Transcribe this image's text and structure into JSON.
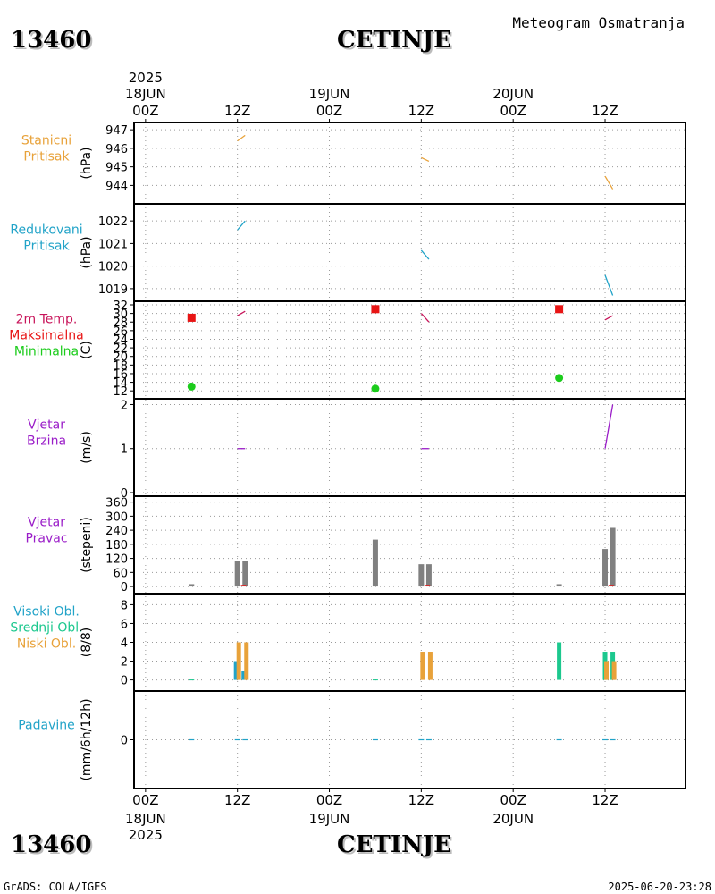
{
  "header": {
    "station_id": "13460",
    "station_name": "CETINJE",
    "subtitle": "Meteogram Osmatranja"
  },
  "time_axis": {
    "year": "2025",
    "top_ticks": [
      {
        "hour": "00Z",
        "date": "18JUN",
        "year": "2025"
      },
      {
        "hour": "12Z",
        "date": "",
        "year": ""
      },
      {
        "hour": "00Z",
        "date": "19JUN",
        "year": ""
      },
      {
        "hour": "12Z",
        "date": "",
        "year": ""
      },
      {
        "hour": "00Z",
        "date": "20JUN",
        "year": ""
      },
      {
        "hour": "12Z",
        "date": "",
        "year": ""
      }
    ],
    "tick_hours": [
      0,
      12,
      24,
      36,
      48,
      60
    ],
    "range_hours": [
      -1.5,
      70.5
    ]
  },
  "footer": {
    "left": "GrADS: COLA/IGES",
    "right": "2025-06-20-23:28"
  },
  "colors": {
    "station_pressure": "#e8a23a",
    "reduced_pressure": "#21a3c8",
    "temperature": "#c8145a",
    "max_temp": "#e81414",
    "min_temp": "#1ccc1c",
    "wind": "#9a1cc8",
    "wind_dir_bar": "#808080",
    "wind_dir_marker": "#e81414",
    "high_cloud": "#21a3c8",
    "mid_cloud": "#1cc88e",
    "low_cloud": "#e8a23a",
    "precip": "#21a3c8"
  },
  "chart_data": [
    {
      "id": "station_pressure",
      "type": "line",
      "labels": [
        {
          "text": "Stanicni",
          "color": "#e8a23a"
        },
        {
          "text": "Pritisak",
          "color": "#e8a23a"
        }
      ],
      "ylabel": "(hPa)",
      "ylim": [
        943.2,
        947.2
      ],
      "yticks": [
        944,
        945,
        946,
        947
      ],
      "series": [
        {
          "name": "station_pressure",
          "color": "#e8a23a",
          "x": [
            12,
            13
          ],
          "y": [
            946.4,
            946.7
          ]
        },
        {
          "name": "station_pressure",
          "color": "#e8a23a",
          "x": [
            36,
            37
          ],
          "y": [
            945.5,
            945.3
          ]
        },
        {
          "name": "station_pressure",
          "color": "#e8a23a",
          "x": [
            60,
            61
          ],
          "y": [
            944.5,
            943.8
          ]
        }
      ]
    },
    {
      "id": "reduced_pressure",
      "type": "line",
      "labels": [
        {
          "text": "Redukovani",
          "color": "#21a3c8"
        },
        {
          "text": "Pritisak",
          "color": "#21a3c8"
        }
      ],
      "ylabel": "(hPa)",
      "ylim": [
        1018.6,
        1022.6
      ],
      "yticks": [
        1019,
        1020,
        1021,
        1022
      ],
      "series": [
        {
          "name": "reduced_pressure",
          "color": "#21a3c8",
          "x": [
            12,
            13
          ],
          "y": [
            1021.6,
            1022.0
          ]
        },
        {
          "name": "reduced_pressure",
          "color": "#21a3c8",
          "x": [
            36,
            37
          ],
          "y": [
            1020.7,
            1020.3
          ]
        },
        {
          "name": "reduced_pressure",
          "color": "#21a3c8",
          "x": [
            60,
            61
          ],
          "y": [
            1019.6,
            1018.7
          ]
        }
      ]
    },
    {
      "id": "temperature",
      "type": "line",
      "labels": [
        {
          "text": "2m Temp.",
          "color": "#c8145a"
        },
        {
          "text": "Maksimalna",
          "color": "#e81414"
        },
        {
          "text": "Minimalna",
          "color": "#1ccc1c"
        }
      ],
      "ylabel": "(C)",
      "ylim": [
        11,
        32
      ],
      "yticks": [
        12,
        14,
        16,
        18,
        20,
        22,
        24,
        26,
        28,
        30,
        32
      ],
      "series": [
        {
          "name": "2m_temp",
          "color": "#c8145a",
          "x": [
            12,
            13
          ],
          "y": [
            29.5,
            30.5
          ]
        },
        {
          "name": "2m_temp",
          "color": "#c8145a",
          "x": [
            36,
            37
          ],
          "y": [
            30.0,
            28.0
          ]
        },
        {
          "name": "2m_temp",
          "color": "#c8145a",
          "x": [
            60,
            61
          ],
          "y": [
            28.5,
            29.5
          ]
        }
      ],
      "max_points": {
        "x": [
          6,
          30,
          54
        ],
        "y": [
          29.0,
          31.0,
          31.0
        ]
      },
      "min_points": {
        "x": [
          6,
          30,
          54
        ],
        "y": [
          13.0,
          12.5,
          15.0
        ]
      }
    },
    {
      "id": "wind_speed",
      "type": "line",
      "labels": [
        {
          "text": "Vjetar",
          "color": "#9a1cc8"
        },
        {
          "text": "Brzina",
          "color": "#9a1cc8"
        }
      ],
      "ylabel": "(m/s)",
      "ylim": [
        0,
        2.05
      ],
      "yticks": [
        0,
        1,
        2
      ],
      "series": [
        {
          "name": "wind_speed",
          "color": "#9a1cc8",
          "x": [
            12,
            13
          ],
          "y": [
            1.0,
            1.0
          ]
        },
        {
          "name": "wind_speed",
          "color": "#9a1cc8",
          "x": [
            36,
            37
          ],
          "y": [
            1.0,
            1.0
          ]
        },
        {
          "name": "wind_speed",
          "color": "#9a1cc8",
          "x": [
            60,
            61
          ],
          "y": [
            1.0,
            2.0
          ]
        }
      ]
    },
    {
      "id": "wind_direction",
      "type": "bar",
      "labels": [
        {
          "text": "Vjetar",
          "color": "#9a1cc8"
        },
        {
          "text": "Pravac",
          "color": "#9a1cc8"
        }
      ],
      "ylabel": "(stepeni)",
      "ylim": [
        -15,
        370
      ],
      "yticks": [
        0,
        60,
        120,
        180,
        240,
        300,
        360
      ],
      "bars": {
        "x": [
          6,
          12,
          13,
          30,
          36,
          37,
          54,
          60,
          61
        ],
        "values": [
          10,
          110,
          110,
          200,
          95,
          95,
          10,
          160,
          250
        ]
      },
      "markers": {
        "x": [
          12.8,
          36.8,
          60.8
        ],
        "values": [
          5,
          5,
          5
        ]
      }
    },
    {
      "id": "clouds",
      "type": "bar",
      "labels": [
        {
          "text": "Visoki Obl.",
          "color": "#21a3c8"
        },
        {
          "text": "Srednji Obl.",
          "color": "#1cc88e"
        },
        {
          "text": "Niski Obl.",
          "color": "#e8a23a"
        }
      ],
      "ylabel": "(8/8)",
      "ylim": [
        -0.8,
        8.8
      ],
      "yticks": [
        0,
        2,
        4,
        6,
        8
      ],
      "series": [
        {
          "name": "Visoki Obl.",
          "color": "#21a3c8",
          "x": [
            12,
            13
          ],
          "values": [
            2,
            1
          ]
        },
        {
          "name": "Srednji Obl.",
          "color": "#1cc88e",
          "x": [
            6,
            30,
            54,
            60,
            61
          ],
          "values": [
            0,
            0,
            4,
            3,
            3
          ]
        },
        {
          "name": "Niski Obl.",
          "color": "#e8a23a",
          "x": [
            12,
            13,
            36,
            37,
            60,
            61
          ],
          "values": [
            4,
            4,
            3,
            3,
            2,
            2
          ]
        }
      ]
    },
    {
      "id": "precipitation",
      "type": "bar",
      "labels": [
        {
          "text": "Padavine",
          "color": "#21a3c8"
        }
      ],
      "ylabel": "(mm/6h/12h)",
      "ylim": [
        -0.6,
        0.6
      ],
      "yticks": [
        0
      ],
      "bars": {
        "x": [
          6,
          12,
          13,
          30,
          36,
          37,
          54,
          60,
          61
        ],
        "values": [
          0,
          0,
          0,
          0,
          0,
          0,
          0,
          0,
          0
        ]
      }
    }
  ]
}
